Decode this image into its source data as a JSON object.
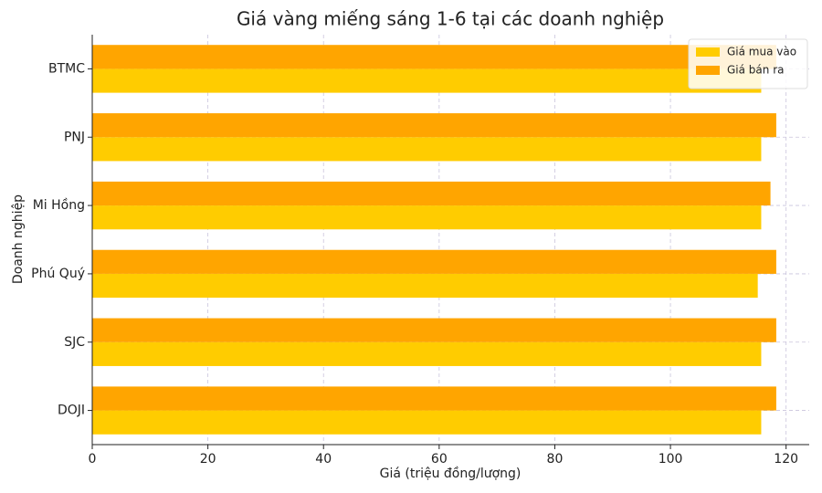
{
  "chart_data": {
    "type": "barh",
    "title": "Giá vàng miếng sáng 1-6 tại các doanh nghiệp",
    "x_label": "Giá (triệu đồng/lượng)",
    "y_label": "Doanh nghiệp",
    "categories": [
      "BTMC",
      "PNJ",
      "Mi Hồng",
      "Phú Quý",
      "SJC",
      "DOJI"
    ],
    "series": [
      {
        "name": "Giá mua vào",
        "color": "#ffcc00",
        "values": [
          115.7,
          115.7,
          115.7,
          115.1,
          115.7,
          115.7
        ]
      },
      {
        "name": "Giá bán ra",
        "color": "#ffa500",
        "values": [
          118.3,
          118.3,
          117.3,
          118.3,
          118.3,
          118.3
        ]
      }
    ],
    "xlim": [
      0,
      124
    ],
    "xticks": [
      0,
      20,
      40,
      60,
      80,
      100,
      120
    ],
    "grid": true,
    "legend": "upper-right"
  }
}
